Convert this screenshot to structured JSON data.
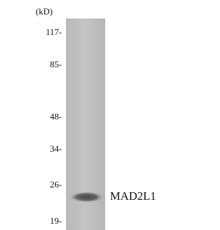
{
  "blot": {
    "unit_label": "(kD)",
    "markers": [
      "117-",
      "85-",
      "48-",
      "34-",
      "26-",
      "19-"
    ],
    "band_label": "MAD2L1"
  }
}
